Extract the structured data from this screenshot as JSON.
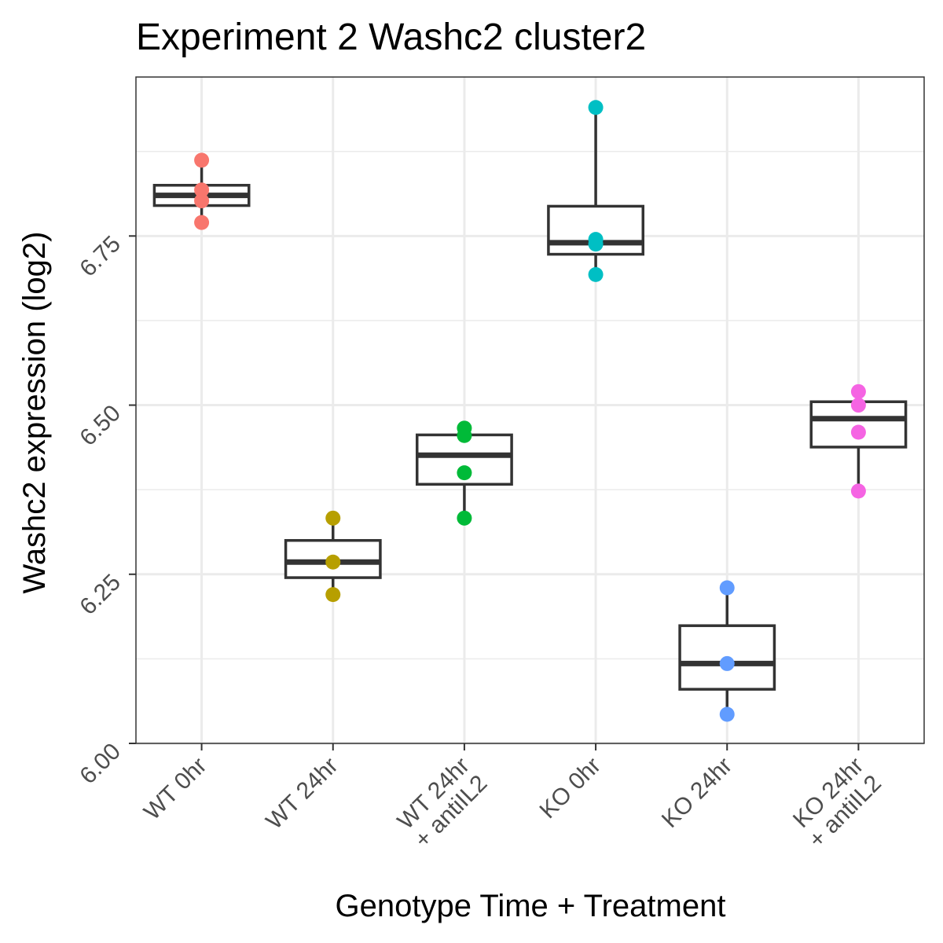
{
  "chart_data": {
    "type": "box",
    "title": "Experiment 2 Washc2 cluster2",
    "xlabel": "Genotype Time + Treatment",
    "ylabel": "Washc2 expression (log2)",
    "ylim": [
      6.0,
      6.985
    ],
    "yticks": [
      6.0,
      6.25,
      6.5,
      6.75
    ],
    "ytick_labels": [
      "6.00",
      "6.25",
      "6.50",
      "6.75"
    ],
    "grid": true,
    "legend": "none",
    "categories": [
      [
        "WT 0hr"
      ],
      [
        "WT 24hr"
      ],
      [
        "WT 24hr",
        "+ antiIL2"
      ],
      [
        "KO 0hr"
      ],
      [
        "KO 24hr"
      ],
      [
        "KO 24hr",
        "+ antiIL2"
      ]
    ],
    "groups": [
      {
        "color": "#F8766D",
        "box": {
          "whisker_low": 6.77,
          "q1": 6.795,
          "median": 6.81,
          "q3": 6.825,
          "whisker_high": 6.862
        },
        "points": [
          6.862,
          6.818,
          6.802,
          6.77
        ]
      },
      {
        "color": "#B79F00",
        "box": {
          "whisker_low": 6.22,
          "q1": 6.245,
          "median": 6.268,
          "q3": 6.3,
          "whisker_high": 6.333
        },
        "points": [
          6.333,
          6.268,
          6.22
        ]
      },
      {
        "color": "#00BA38",
        "box": {
          "whisker_low": 6.333,
          "q1": 6.383,
          "median": 6.426,
          "q3": 6.456,
          "whisker_high": 6.466
        },
        "points": [
          6.466,
          6.455,
          6.4,
          6.333
        ]
      },
      {
        "color": "#00BFC4",
        "box": {
          "whisker_low": 6.693,
          "q1": 6.723,
          "median": 6.74,
          "q3": 6.794,
          "whisker_high": 6.94
        },
        "points": [
          6.94,
          6.745,
          6.738,
          6.693
        ]
      },
      {
        "color": "#619CFF",
        "box": {
          "whisker_low": 6.043,
          "q1": 6.08,
          "median": 6.118,
          "q3": 6.174,
          "whisker_high": 6.23
        },
        "points": [
          6.23,
          6.118,
          6.043
        ]
      },
      {
        "color": "#F564E3",
        "box": {
          "whisker_low": 6.373,
          "q1": 6.438,
          "median": 6.48,
          "q3": 6.505,
          "whisker_high": 6.52
        },
        "points": [
          6.52,
          6.5,
          6.46,
          6.373
        ]
      }
    ]
  }
}
